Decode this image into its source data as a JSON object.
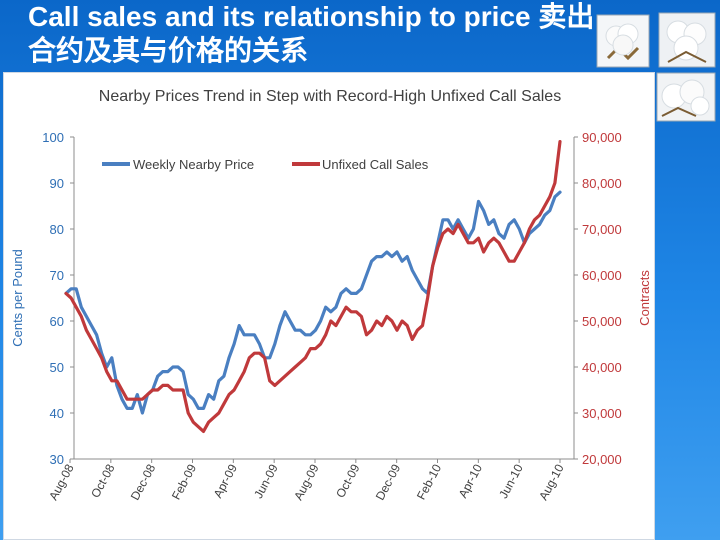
{
  "slide": {
    "title": "Call sales and its relationship to price 卖出合约及其与价格的关系"
  },
  "colors": {
    "background": "#1f86e6",
    "nearby_price": "#4a7fc1",
    "unfixed_call_sales": "#c0393b",
    "left_axis_text": "#2f6fb5",
    "right_axis_text": "#c0393b"
  },
  "icons": [
    "cotton-boll-icon",
    "cotton-boll-icon",
    "cotton-boll-icon"
  ],
  "chart_data": {
    "type": "line",
    "title": "Nearby Prices Trend in Step with Record-High Unfixed Call Sales",
    "ylabel": "Cents per Pound",
    "y2label": "Contracts",
    "ylim": [
      30,
      100
    ],
    "y2lim": [
      20000,
      90000
    ],
    "yticks": [
      "30",
      "40",
      "50",
      "60",
      "70",
      "80",
      "90",
      "100"
    ],
    "y2ticks": [
      "20,000",
      "30,000",
      "40,000",
      "50,000",
      "60,000",
      "70,000",
      "80,000",
      "90,000"
    ],
    "xticks": [
      "Aug-08",
      "Oct-08",
      "Dec-08",
      "Feb-09",
      "Apr-09",
      "Jun-09",
      "Aug-09",
      "Oct-09",
      "Dec-09",
      "Feb-10",
      "Apr-10",
      "Jun-10",
      "Aug-10"
    ],
    "legend_position": "top-left",
    "series": [
      {
        "name": "Weekly Nearby Price",
        "axis": "left",
        "color": "#4a7fc1",
        "values": [
          66,
          67,
          67,
          63,
          61,
          59,
          57,
          53,
          50,
          52,
          46,
          43,
          41,
          41,
          44,
          40,
          44,
          45,
          48,
          49,
          49,
          50,
          50,
          49,
          44,
          43,
          41,
          41,
          44,
          43,
          47,
          48,
          52,
          55,
          59,
          57,
          57,
          57,
          55,
          52,
          52,
          55,
          59,
          62,
          60,
          58,
          58,
          57,
          57,
          58,
          60,
          63,
          62,
          63,
          66,
          67,
          66,
          66,
          67,
          70,
          73,
          74,
          74,
          75,
          74,
          75,
          73,
          74,
          71,
          69,
          67,
          66,
          72,
          77,
          82,
          82,
          80,
          82,
          80,
          78,
          80,
          86,
          84,
          81,
          82,
          79,
          78,
          81,
          82,
          80,
          77,
          79,
          80,
          81,
          83,
          84,
          87,
          88
        ]
      },
      {
        "name": "Unfixed Call Sales",
        "axis": "right",
        "color": "#c0393b",
        "values": [
          56000,
          55000,
          53000,
          51000,
          48000,
          46000,
          44000,
          42000,
          39000,
          37000,
          37000,
          35000,
          33000,
          33000,
          33000,
          33000,
          34000,
          35000,
          35000,
          36000,
          36000,
          35000,
          35000,
          35000,
          30000,
          28000,
          27000,
          26000,
          28000,
          29000,
          30000,
          32000,
          34000,
          35000,
          37000,
          39000,
          42000,
          43000,
          43000,
          42000,
          37000,
          36000,
          37000,
          38000,
          39000,
          40000,
          41000,
          42000,
          44000,
          44000,
          45000,
          47000,
          50000,
          49000,
          51000,
          53000,
          52000,
          52000,
          51000,
          47000,
          48000,
          50000,
          49000,
          51000,
          50000,
          48000,
          50000,
          49000,
          46000,
          48000,
          49000,
          55000,
          62000,
          66000,
          69000,
          70000,
          69000,
          71000,
          69000,
          67000,
          67000,
          68000,
          65000,
          67000,
          68000,
          67000,
          65000,
          63000,
          63000,
          65000,
          67000,
          70000,
          72000,
          73000,
          75000,
          77000,
          80000,
          89000
        ]
      }
    ]
  }
}
